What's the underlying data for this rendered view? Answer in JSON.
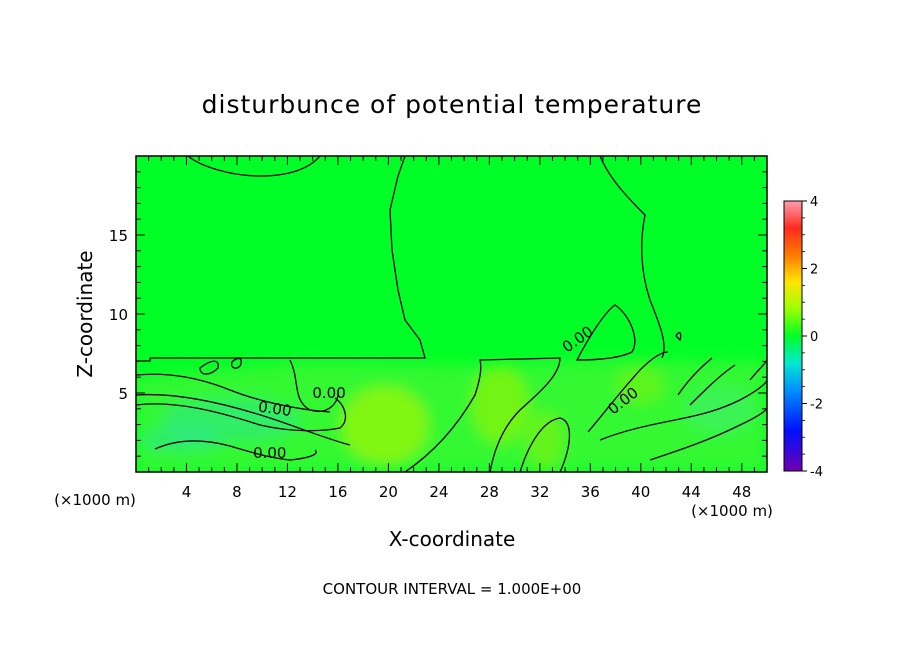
{
  "chart_data": {
    "type": "heatmap",
    "title": "disturbunce of potential temperature",
    "xlabel": "X-coordinate",
    "ylabel": "Z-coordinate",
    "x_unit_left": "(×1000 m)",
    "x_unit_right": "(×1000 m)",
    "xlim": [
      0,
      50
    ],
    "ylim": [
      0,
      20
    ],
    "x_ticks": [
      4,
      8,
      12,
      16,
      20,
      24,
      28,
      32,
      36,
      40,
      44,
      48
    ],
    "y_ticks": [
      5,
      10,
      15
    ],
    "colorbar": {
      "range": [
        -4,
        4
      ],
      "ticks": [
        4,
        2,
        0,
        -2,
        -4
      ],
      "colors": [
        "#ff9fae",
        "#ff2a1e",
        "#ff7a00",
        "#ffe600",
        "#9cff00",
        "#00ff27",
        "#00e9d0",
        "#0090ff",
        "#0010ff",
        "#7000b0"
      ]
    },
    "background_value": 0.0,
    "contour_labels": [
      {
        "text": "0.00",
        "x": 11.0,
        "z": 4.0
      },
      {
        "text": "0.00",
        "x": 15.3,
        "z": 5.0
      },
      {
        "text": "0.00",
        "x": 10.6,
        "z": 1.2
      },
      {
        "text": "0.00",
        "x": 35.0,
        "z": 8.4
      },
      {
        "text": "0.00",
        "x": 38.6,
        "z": 4.5
      }
    ],
    "contour_interval_text": "CONTOUR INTERVAL = 1.000E+00"
  }
}
